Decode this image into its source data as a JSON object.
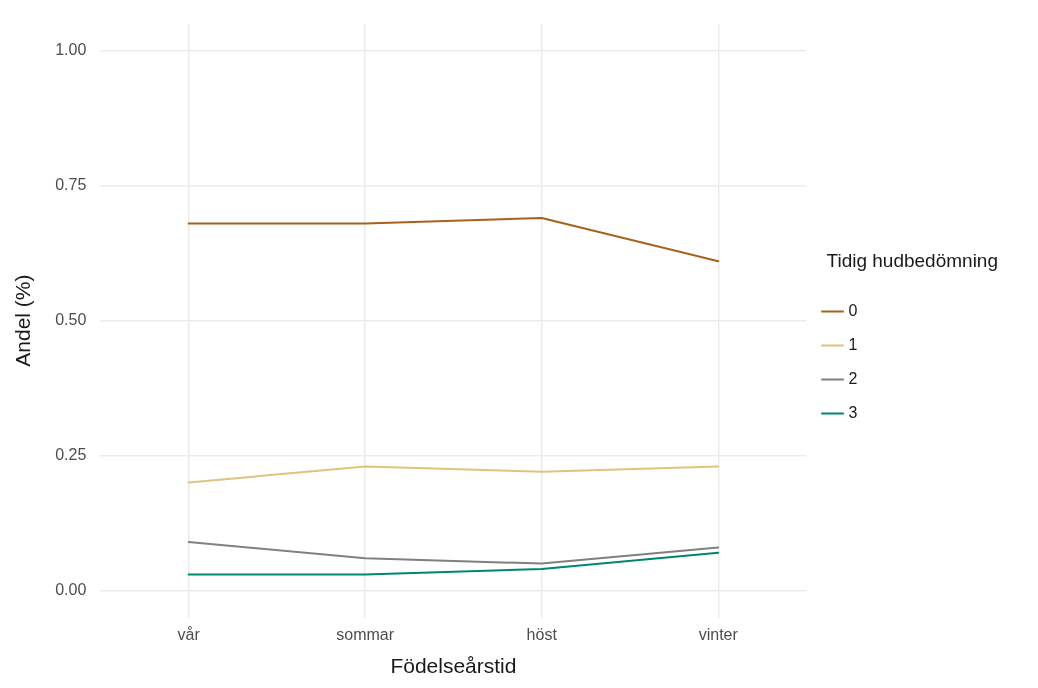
{
  "chart_data": {
    "type": "line",
    "xlabel": "Födelseårstid",
    "ylabel": "Andel (%)",
    "legend_title": "Tidig hudbedömning",
    "categories": [
      "vår",
      "sommar",
      "höst",
      "vinter"
    ],
    "series": [
      {
        "name": "0",
        "color": "#a6611a",
        "values": [
          0.68,
          0.68,
          0.69,
          0.61
        ]
      },
      {
        "name": "1",
        "color": "#dfc27d",
        "values": [
          0.2,
          0.23,
          0.22,
          0.23
        ]
      },
      {
        "name": "2",
        "color": "#808080",
        "values": [
          0.09,
          0.06,
          0.05,
          0.08
        ]
      },
      {
        "name": "3",
        "color": "#018571",
        "values": [
          0.03,
          0.03,
          0.04,
          0.07
        ]
      }
    ],
    "ylim": [
      -0.05,
      1.05
    ],
    "yticks": [
      {
        "value": 0,
        "label": "0.00"
      },
      {
        "value": 0.25,
        "label": "0.25"
      },
      {
        "value": 0.5,
        "label": "0.50"
      },
      {
        "value": 0.75,
        "label": "0.75"
      },
      {
        "value": 1,
        "label": "1.00"
      }
    ],
    "grid": true,
    "legend": "right",
    "marker": "none",
    "line_style": "solid"
  }
}
